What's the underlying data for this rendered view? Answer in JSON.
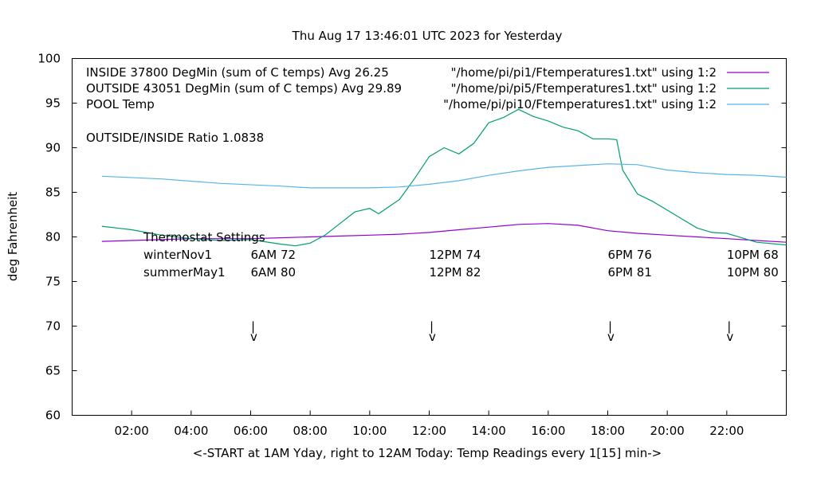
{
  "chart_data": {
    "type": "line",
    "title": "Thu Aug 17 13:46:01 UTC 2023 for Yesterday",
    "xlabel": "<-START at 1AM Yday, right to 12AM Today:  Temp Readings every 1[15] min->",
    "ylabel": "deg Fahrenheit",
    "xlim": [
      0,
      24
    ],
    "ylim": [
      60,
      100
    ],
    "grid": false,
    "legend_placement": "top-right",
    "xticks": [
      {
        "h": 2,
        "label": "02:00"
      },
      {
        "h": 4,
        "label": "04:00"
      },
      {
        "h": 6,
        "label": "06:00"
      },
      {
        "h": 8,
        "label": "08:00"
      },
      {
        "h": 10,
        "label": "10:00"
      },
      {
        "h": 12,
        "label": "12:00"
      },
      {
        "h": 14,
        "label": "14:00"
      },
      {
        "h": 16,
        "label": "16:00"
      },
      {
        "h": 18,
        "label": "18:00"
      },
      {
        "h": 20,
        "label": "20:00"
      },
      {
        "h": 22,
        "label": "22:00"
      }
    ],
    "yticks": [
      60,
      65,
      70,
      75,
      80,
      85,
      90,
      95,
      100
    ],
    "series": [
      {
        "name": "INSIDE 37800 DegMin (sum of C temps) Avg 26.25",
        "source": "\"/home/pi/pi1/Ftemperatures1.txt\" using 1:2",
        "color": "#9400d3",
        "x": [
          1,
          2,
          3,
          4,
          5,
          6,
          7,
          8,
          9,
          10,
          11,
          12,
          13,
          14,
          15,
          16,
          17,
          18,
          19,
          20,
          21,
          22,
          23,
          24
        ],
        "y": [
          79.5,
          79.6,
          79.7,
          79.8,
          79.8,
          79.8,
          79.9,
          80.0,
          80.1,
          80.2,
          80.3,
          80.5,
          80.8,
          81.1,
          81.4,
          81.5,
          81.3,
          80.7,
          80.4,
          80.2,
          80.0,
          79.8,
          79.6,
          79.4
        ]
      },
      {
        "name": "OUTSIDE 43051 DegMin (sum of C temps) Avg 29.89",
        "source": "\"/home/pi/pi5/Ftemperatures1.txt\" using 1:2",
        "color": "#009e73",
        "x": [
          1,
          1.5,
          2,
          3,
          4,
          5,
          6,
          7,
          7.5,
          8,
          8.5,
          9,
          9.5,
          10,
          10.3,
          11,
          11.5,
          12,
          12.5,
          13,
          13.5,
          14,
          14.5,
          15,
          15.5,
          16,
          16.5,
          17,
          17.5,
          18,
          18.3,
          18.5,
          19,
          19.5,
          20,
          20.5,
          21,
          21.5,
          22,
          22.5,
          23,
          24
        ],
        "y": [
          81.2,
          81.0,
          80.8,
          80.2,
          79.8,
          79.6,
          79.7,
          79.2,
          79.0,
          79.3,
          80.2,
          81.5,
          82.8,
          83.2,
          82.6,
          84.2,
          86.5,
          89.0,
          90.0,
          89.3,
          90.5,
          92.8,
          93.4,
          94.3,
          93.5,
          93.0,
          92.3,
          91.9,
          91.0,
          91.0,
          90.9,
          87.5,
          84.8,
          84.0,
          83.0,
          82.0,
          81.0,
          80.5,
          80.4,
          79.9,
          79.4,
          79.1
        ]
      },
      {
        "name": "POOL Temp",
        "source": "\"/home/pi/pi10/Ftemperatures1.txt\" using 1:2",
        "color": "#56b4e9",
        "x": [
          1,
          3,
          5,
          7,
          8,
          10,
          11,
          12,
          13,
          14,
          15,
          16,
          17,
          18,
          19,
          20,
          21,
          22,
          23,
          24
        ],
        "y": [
          86.8,
          86.5,
          86.0,
          85.7,
          85.5,
          85.5,
          85.6,
          85.9,
          86.3,
          86.9,
          87.4,
          87.8,
          88.0,
          88.2,
          88.1,
          87.5,
          87.2,
          87.0,
          86.9,
          86.7
        ]
      }
    ],
    "annotations": {
      "ratio": "OUTSIDE/INSIDE Ratio 1.0838",
      "thermostat_title": "Thermostat Settings",
      "rows": [
        {
          "label": "winterNov1",
          "values": [
            "6AM 72",
            "12PM 74",
            "6PM 76",
            "10PM 68"
          ]
        },
        {
          "label": "summerMay1",
          "values": [
            "6AM 80",
            "12PM 82",
            "6PM 81",
            "10PM 80"
          ]
        }
      ],
      "markers": [
        {
          "h": 6,
          "bar": "|",
          "arrow": "v"
        },
        {
          "h": 12,
          "bar": "|",
          "arrow": "v"
        },
        {
          "h": 18,
          "bar": "|",
          "arrow": "v"
        },
        {
          "h": 22,
          "bar": "|",
          "arrow": "v"
        }
      ]
    }
  }
}
